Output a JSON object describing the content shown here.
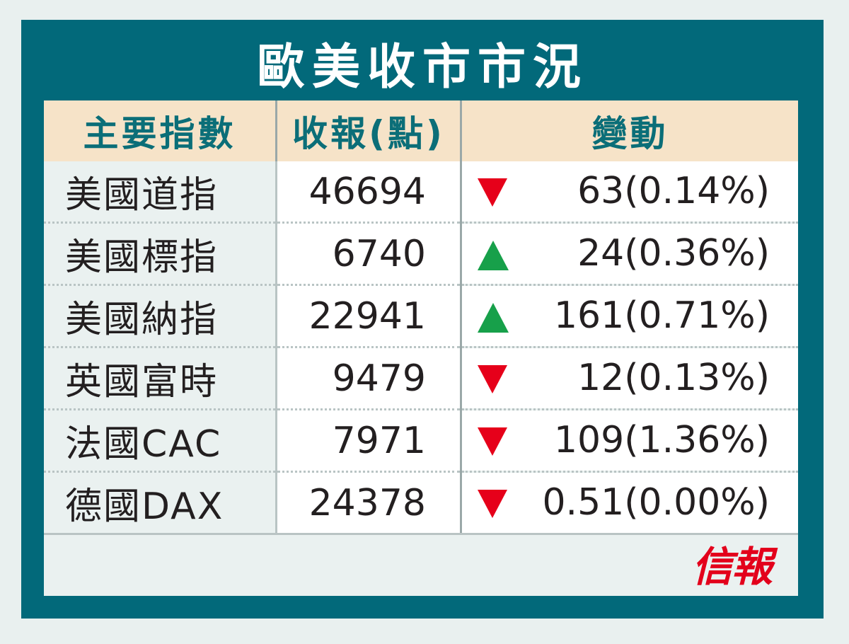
{
  "title": "歐美收市市況",
  "headers": {
    "index": "主要指數",
    "close": "收報(點)",
    "change": "變動"
  },
  "rows": [
    {
      "name": "美國道指",
      "close": "46694",
      "direction": "down",
      "change": "63(0.14%)"
    },
    {
      "name": "美國標指",
      "close": "6740",
      "direction": "up",
      "change": "24(0.36%)"
    },
    {
      "name": "美國納指",
      "close": "22941",
      "direction": "up",
      "change": "161(0.71%)"
    },
    {
      "name": "英國富時",
      "close": "9479",
      "direction": "down",
      "change": "12(0.13%)"
    },
    {
      "name": "法國CAC",
      "close": "7971",
      "direction": "down",
      "change": "109(1.36%)"
    },
    {
      "name": "德國DAX",
      "close": "24378",
      "direction": "down",
      "change": "0.51(0.00%)"
    }
  ],
  "brand": "信報",
  "colors": {
    "frame": "#02697a",
    "header_bg": "#f6e3c8",
    "header_text": "#0b6e78",
    "down": "#e6001a",
    "up": "#17a04a",
    "brand": "#e3001b"
  }
}
